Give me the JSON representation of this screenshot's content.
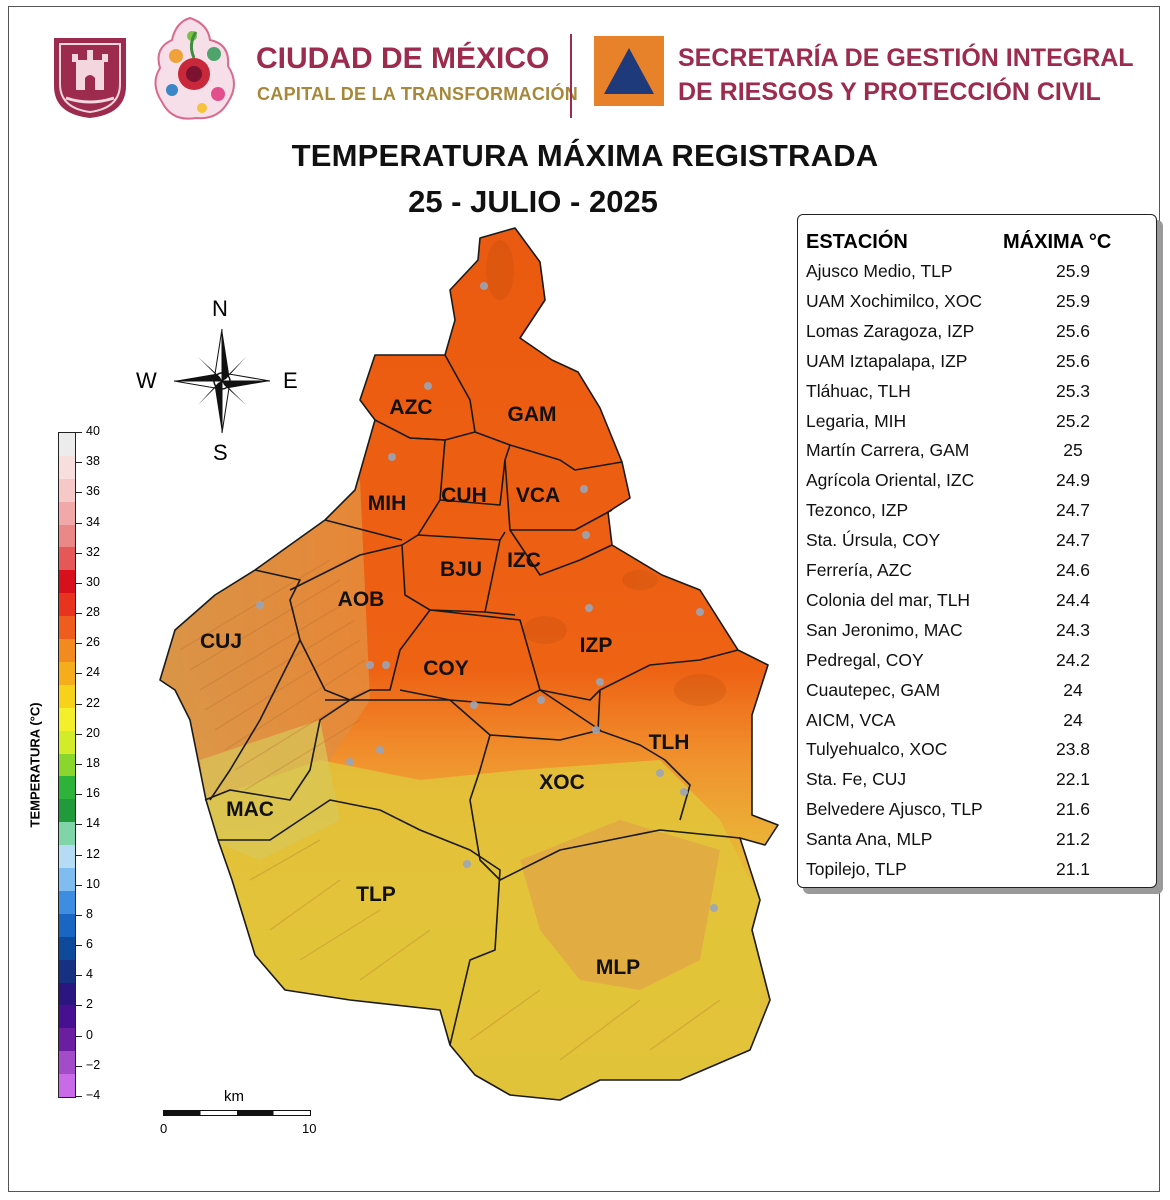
{
  "header": {
    "city_name": "CIUDAD DE MÉXICO",
    "city_slogan": "CAPITAL DE LA TRANSFORMACIÓN",
    "agency_line1": "SECRETARÍA DE GESTIÓN INTEGRAL",
    "agency_line2": "DE RIESGOS Y PROTECCIÓN CIVIL",
    "brand_color": "#9c2b4d",
    "agency_color": "#e8822a"
  },
  "title": {
    "line1": "TEMPERATURA MÁXIMA REGISTRADA",
    "line2": "25 - JULIO - 2025"
  },
  "compass": {
    "n": "N",
    "s": "S",
    "e": "E",
    "w": "W"
  },
  "legend": {
    "label": "TEMPERATURA (°C)",
    "ticks": [
      "40",
      "38",
      "36",
      "34",
      "32",
      "30",
      "28",
      "26",
      "24",
      "22",
      "20",
      "18",
      "16",
      "14",
      "12",
      "10",
      "8",
      "6",
      "4",
      "2",
      "0",
      "−2",
      "−4"
    ],
    "colors": [
      "#ececec",
      "#f9dede",
      "#f6c8c8",
      "#f0a8a8",
      "#ea8787",
      "#e45858",
      "#d8101b",
      "#e8341f",
      "#ee5d1e",
      "#f28a1f",
      "#f5ad1c",
      "#f6d21a",
      "#f3ef2a",
      "#d2ec2a",
      "#8bd62c",
      "#2eb33a",
      "#219a3c",
      "#7fd5a7",
      "#b6dcf5",
      "#7fbdf0",
      "#3d8ee0",
      "#1866c2",
      "#0d4a9c",
      "#173182",
      "#2b1680",
      "#461090",
      "#6b1fa0",
      "#a24cc9",
      "#c96be8"
    ]
  },
  "scale_bar": {
    "unit": "km",
    "start": "0",
    "end": "10"
  },
  "districts": [
    {
      "code": "AZC"
    },
    {
      "code": "GAM"
    },
    {
      "code": "MIH"
    },
    {
      "code": "CUH"
    },
    {
      "code": "VCA"
    },
    {
      "code": "BJU"
    },
    {
      "code": "IZC"
    },
    {
      "code": "AOB"
    },
    {
      "code": "CUJ"
    },
    {
      "code": "COY"
    },
    {
      "code": "IZP"
    },
    {
      "code": "TLH"
    },
    {
      "code": "MAC"
    },
    {
      "code": "XOC"
    },
    {
      "code": "TLP"
    },
    {
      "code": "MLP"
    }
  ],
  "table": {
    "col_station": "ESTACIÓN",
    "col_max": "MÁXIMA °C",
    "rows": [
      {
        "station": "Ajusco Medio, TLP",
        "max": "25.9"
      },
      {
        "station": "UAM Xochimilco, XOC",
        "max": "25.9"
      },
      {
        "station": "Lomas Zaragoza, IZP",
        "max": "25.6"
      },
      {
        "station": "UAM Iztapalapa, IZP",
        "max": "25.6"
      },
      {
        "station": "Tláhuac, TLH",
        "max": "25.3"
      },
      {
        "station": "Legaria, MIH",
        "max": "25.2"
      },
      {
        "station": "Martín Carrera, GAM",
        "max": "25"
      },
      {
        "station": "Agrícola Oriental, IZC",
        "max": "24.9"
      },
      {
        "station": "Tezonco, IZP",
        "max": "24.7"
      },
      {
        "station": "Sta. Úrsula, COY",
        "max": "24.7"
      },
      {
        "station": "Ferrería, AZC",
        "max": "24.6"
      },
      {
        "station": "Colonia del mar, TLH",
        "max": "24.4"
      },
      {
        "station": "San Jeronimo, MAC",
        "max": "24.3"
      },
      {
        "station": "Pedregal, COY",
        "max": "24.2"
      },
      {
        "station": "Cuautepec, GAM",
        "max": "24"
      },
      {
        "station": "AICM, VCA",
        "max": "24"
      },
      {
        "station": "Tulyehualco, XOC",
        "max": "23.8"
      },
      {
        "station": "Sta. Fe, CUJ",
        "max": "22.1"
      },
      {
        "station": "Belvedere Ajusco, TLP",
        "max": "21.6"
      },
      {
        "station": "Santa Ana, MLP",
        "max": "21.2"
      },
      {
        "station": "Topilejo, TLP",
        "max": "21.1"
      }
    ]
  }
}
